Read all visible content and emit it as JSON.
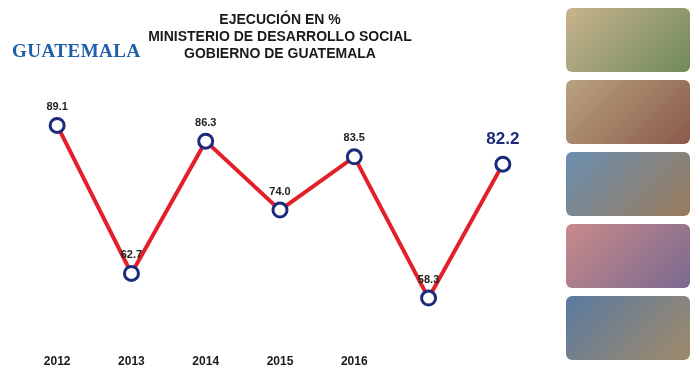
{
  "chart_data": {
    "type": "line",
    "logo": "GUATEMALA",
    "title": [
      "EJECUCIÓN EN %",
      "MINISTERIO DE DESARROLLO SOCIAL",
      "GOBIERNO DE GUATEMALA"
    ],
    "categories": [
      "2012",
      "2013",
      "2014",
      "2015",
      "2016",
      null,
      null
    ],
    "values": [
      89.1,
      62.7,
      86.3,
      74.0,
      83.5,
      58.3,
      82.2
    ],
    "value_labels": [
      "89.1",
      "62.7",
      "86.3",
      "74.0",
      "83.5",
      "58.3",
      "82.2"
    ],
    "color": "#e3202a",
    "marker": "circle",
    "line_style": "solid",
    "ylim": [
      50,
      95
    ],
    "grid": false,
    "data_labels": true,
    "tick_labels": "x"
  }
}
